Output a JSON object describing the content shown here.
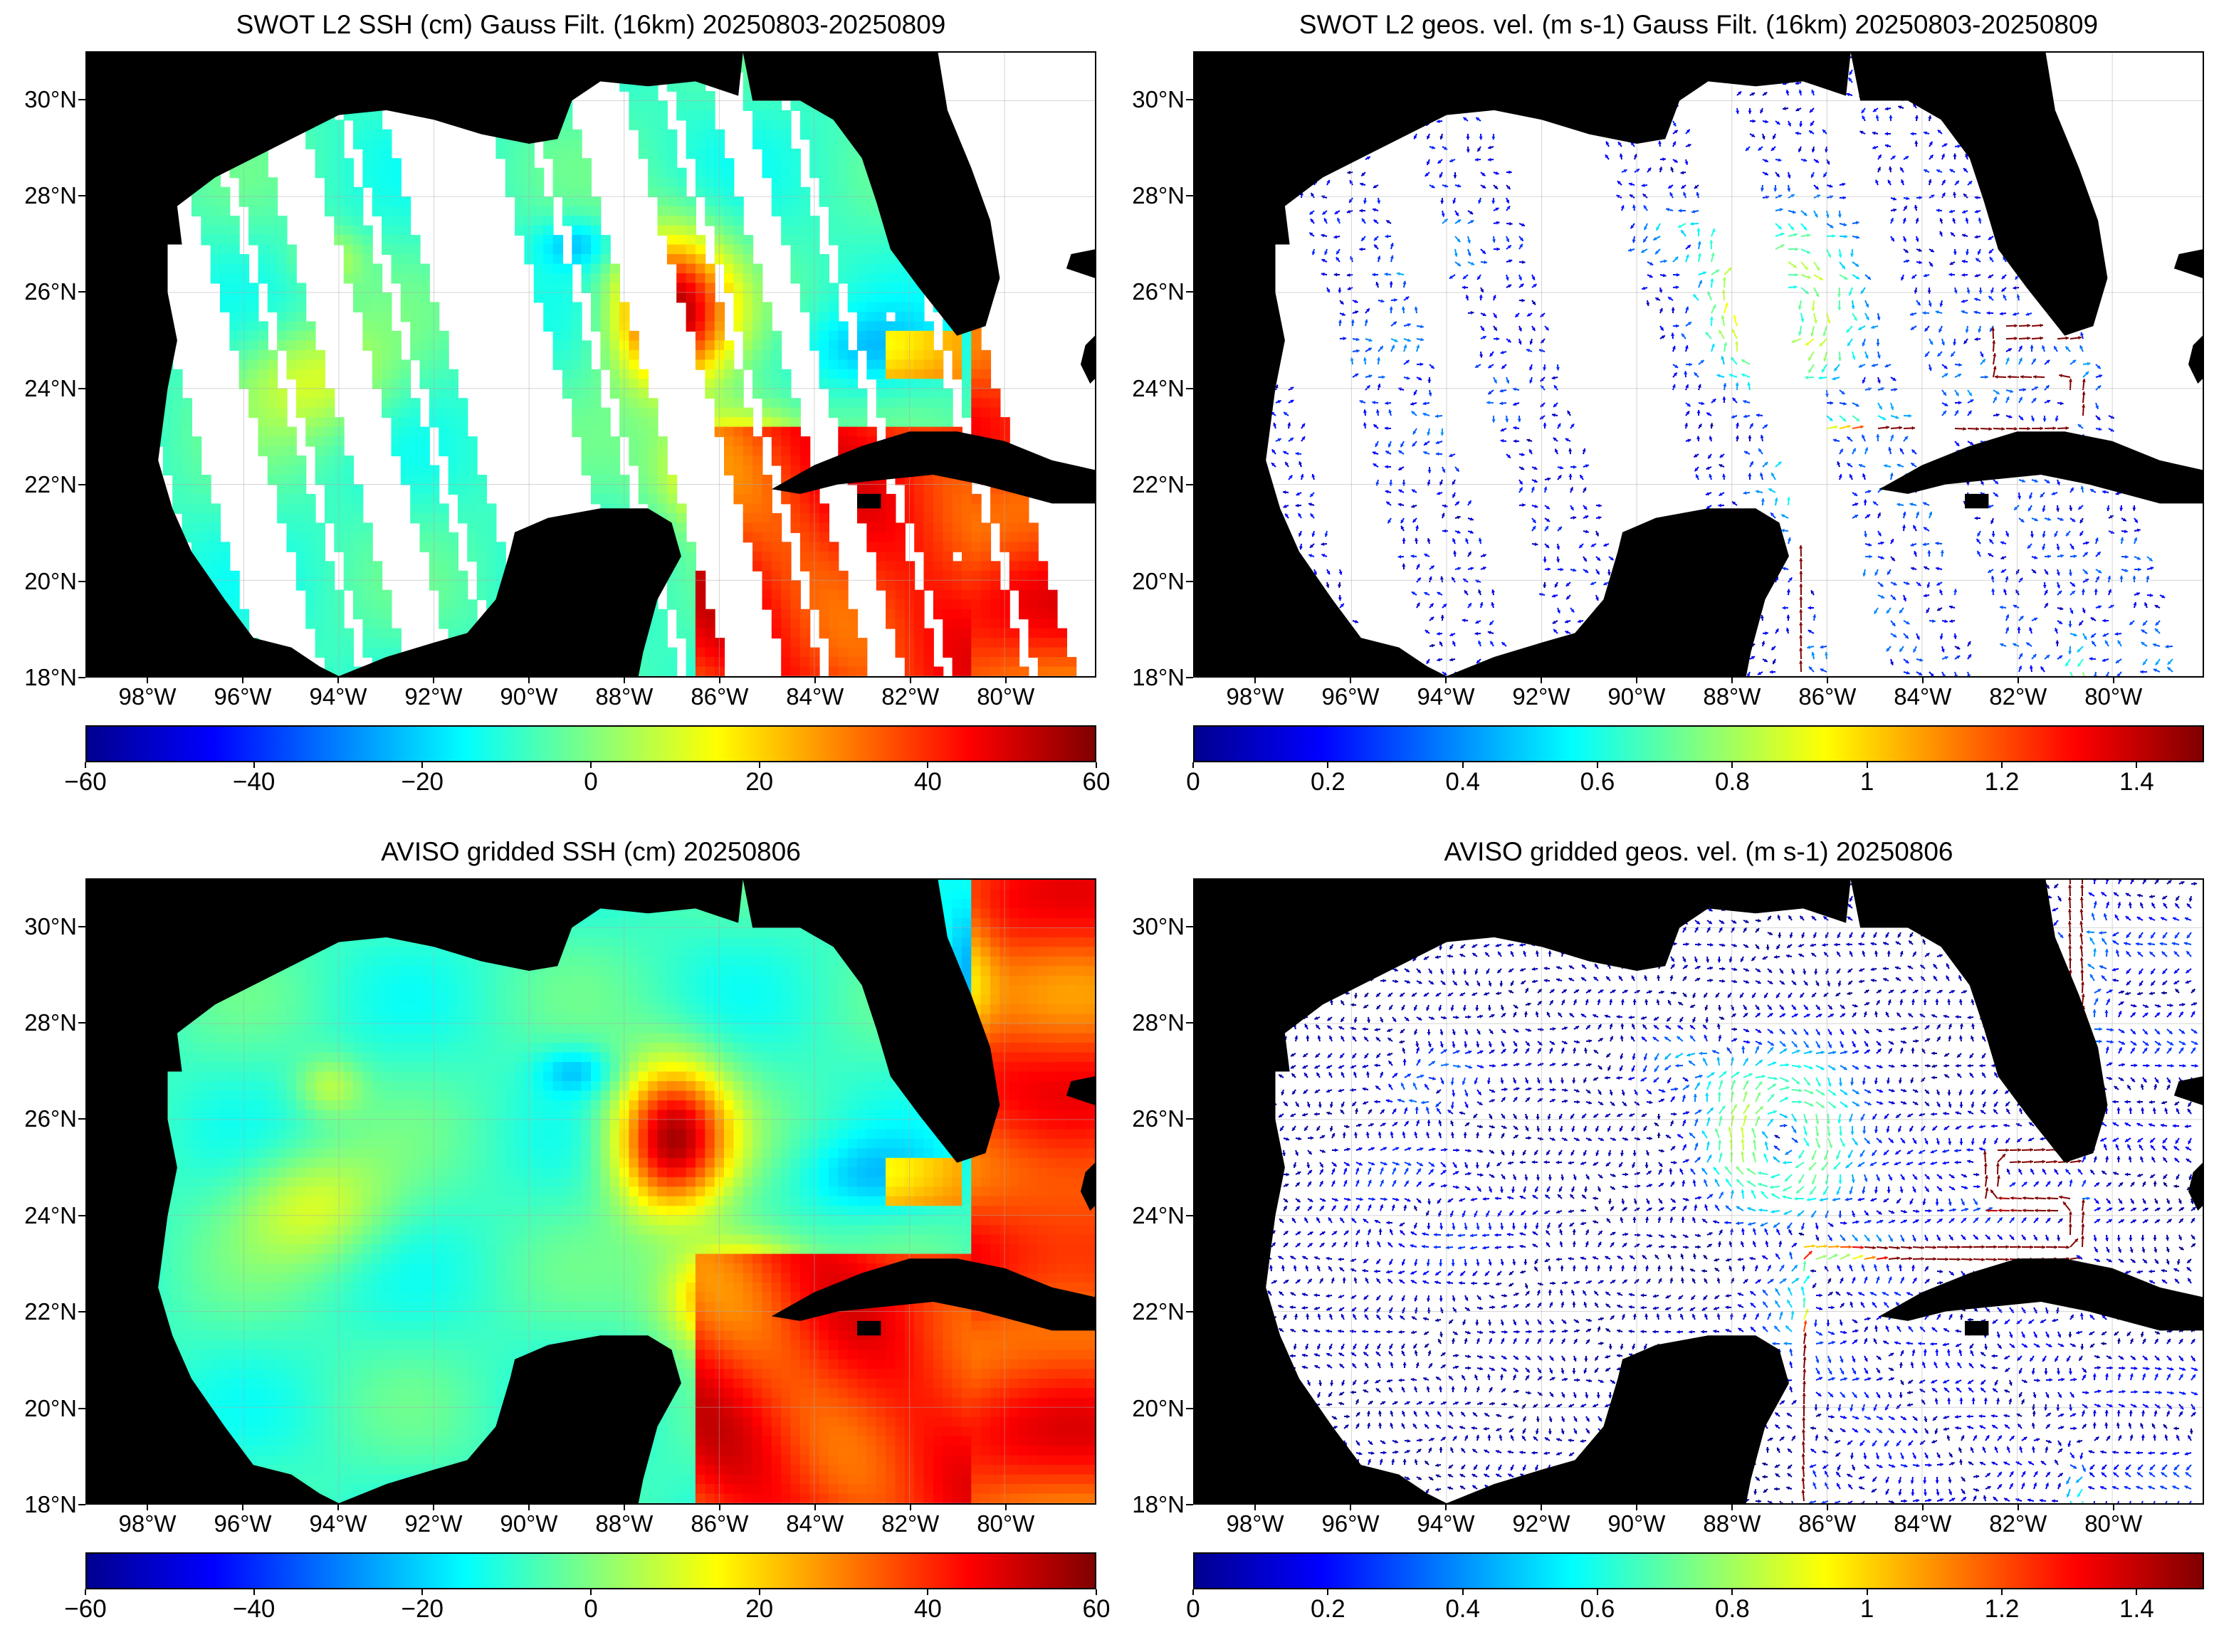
{
  "panels": [
    {
      "id": "swot-ssh",
      "title": "SWOT L2 SSH (cm) Gauss Filt. (16km) 20250803-20250809",
      "kind": "swath-ssh",
      "colorbar": {
        "ticks": [
          "−60",
          "−40",
          "−20",
          "0",
          "20",
          "40",
          "60"
        ],
        "range": [
          -60,
          60
        ]
      }
    },
    {
      "id": "swot-vel",
      "title": "SWOT L2 geos. vel. (m s-1) Gauss Filt. (16km) 20250803-20250809",
      "kind": "swath-vel",
      "colorbar": {
        "ticks": [
          "0",
          "0.2",
          "0.4",
          "0.6",
          "0.8",
          "1",
          "1.2",
          "1.4"
        ],
        "range": [
          0,
          1.5
        ]
      }
    },
    {
      "id": "aviso-ssh",
      "title": "AVISO gridded SSH (cm) 20250806",
      "kind": "grid-ssh",
      "colorbar": {
        "ticks": [
          "−60",
          "−40",
          "−20",
          "0",
          "20",
          "40",
          "60"
        ],
        "range": [
          -60,
          60
        ]
      }
    },
    {
      "id": "aviso-vel",
      "title": "AVISO gridded geos. vel. (m s-1)  20250806",
      "kind": "grid-vel",
      "colorbar": {
        "ticks": [
          "0",
          "0.2",
          "0.4",
          "0.6",
          "0.8",
          "1",
          "1.2",
          "1.4"
        ],
        "range": [
          0,
          1.5
        ]
      }
    }
  ],
  "axes": {
    "lat_labels": [
      "30°N",
      "28°N",
      "26°N",
      "24°N",
      "22°N",
      "20°N",
      "18°N"
    ],
    "lat_values": [
      30,
      28,
      26,
      24,
      22,
      20,
      18
    ],
    "lon_labels": [
      "98°W",
      "96°W",
      "94°W",
      "92°W",
      "90°W",
      "88°W",
      "86°W",
      "84°W",
      "82°W",
      "80°W"
    ],
    "lon_values": [
      -98,
      -96,
      -94,
      -92,
      -90,
      -88,
      -86,
      -84,
      -82,
      -80
    ],
    "lat_range": [
      18,
      31
    ],
    "lon_range": [
      -99.3,
      -78.1
    ]
  },
  "colors": {
    "land": "#000000",
    "ocean_nodata": "#ffffff",
    "grid": "#aaaaaa"
  },
  "colormap": "jet"
}
